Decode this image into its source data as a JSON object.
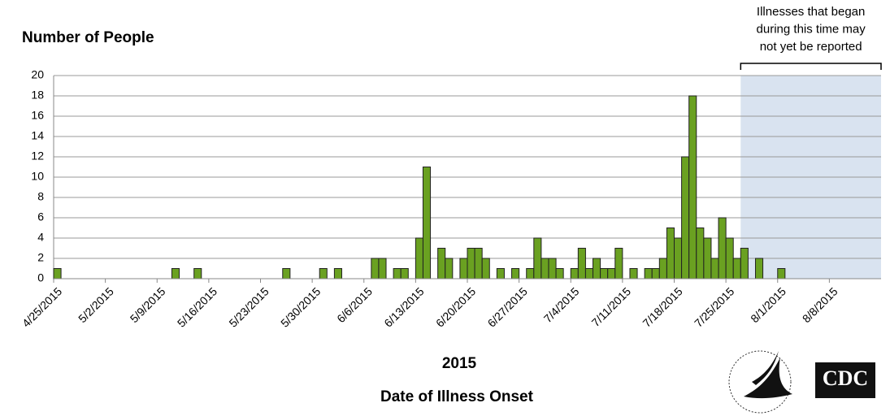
{
  "chart_data": {
    "type": "bar",
    "title": "Number of People",
    "xlabel_year": "2015",
    "xlabel": "Date of Illness Onset",
    "annotation": [
      "Illnesses that began",
      "during this time may",
      "not yet be reported"
    ],
    "shaded_from_index": 93,
    "logo_text": "CDC",
    "categories": [
      "4/25/2015",
      null,
      null,
      null,
      null,
      null,
      null,
      "5/2/2015",
      null,
      null,
      null,
      null,
      null,
      null,
      "5/9/2015",
      null,
      null,
      null,
      null,
      null,
      null,
      "5/16/2015",
      null,
      null,
      null,
      null,
      null,
      null,
      "5/23/2015",
      null,
      null,
      null,
      null,
      null,
      null,
      "5/30/2015",
      null,
      null,
      null,
      null,
      null,
      null,
      "6/6/2015",
      null,
      null,
      null,
      null,
      null,
      null,
      "6/13/2015",
      null,
      null,
      null,
      null,
      null,
      null,
      "6/20/2015",
      null,
      null,
      null,
      null,
      null,
      null,
      "6/27/2015",
      null,
      null,
      null,
      null,
      null,
      null,
      "7/4/2015",
      null,
      null,
      null,
      null,
      null,
      null,
      "7/11/2015",
      null,
      null,
      null,
      null,
      null,
      null,
      "7/18/2015",
      null,
      null,
      null,
      null,
      null,
      null,
      "7/25/2015",
      null,
      null,
      null,
      null,
      null,
      null,
      "8/1/2015",
      null,
      null,
      null,
      null,
      null,
      null,
      "8/8/2015",
      null,
      null,
      null,
      null,
      null,
      null
    ],
    "values": [
      1,
      0,
      0,
      0,
      0,
      0,
      0,
      0,
      0,
      0,
      0,
      0,
      0,
      0,
      0,
      0,
      1,
      0,
      0,
      1,
      0,
      0,
      0,
      0,
      0,
      0,
      0,
      0,
      0,
      0,
      0,
      1,
      0,
      0,
      0,
      0,
      1,
      0,
      1,
      0,
      0,
      0,
      0,
      2,
      2,
      0,
      1,
      1,
      0,
      4,
      11,
      0,
      3,
      2,
      0,
      2,
      3,
      3,
      2,
      0,
      1,
      0,
      1,
      0,
      1,
      4,
      2,
      2,
      1,
      0,
      1,
      3,
      1,
      2,
      1,
      1,
      3,
      0,
      1,
      0,
      1,
      1,
      2,
      5,
      4,
      12,
      18,
      5,
      4,
      2,
      6,
      4,
      2,
      3,
      0,
      2,
      0,
      0,
      1,
      0,
      0,
      0,
      0,
      0,
      0,
      0,
      0,
      0,
      0,
      0,
      0,
      0
    ],
    "color": "#6aa121",
    "ylim": [
      0,
      20
    ],
    "yticks": [
      0,
      2,
      4,
      6,
      8,
      10,
      12,
      14,
      16,
      18,
      20
    ],
    "grid": true
  }
}
